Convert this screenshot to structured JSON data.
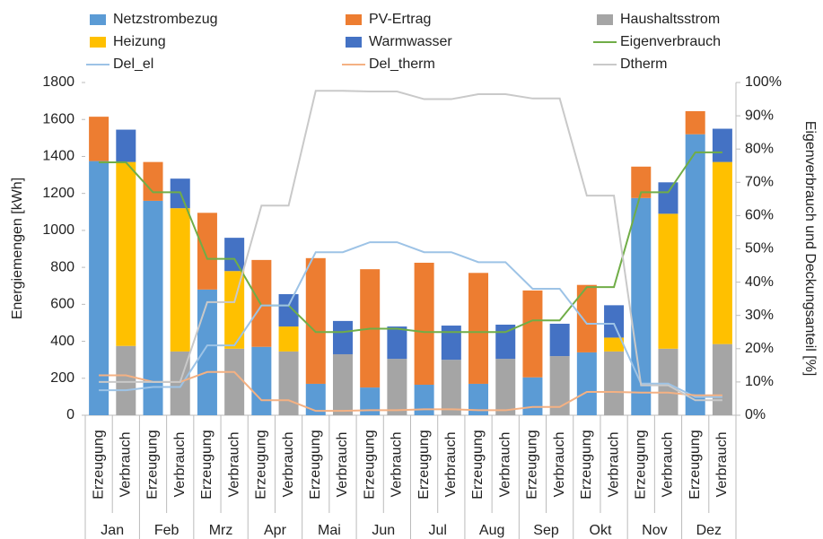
{
  "chart_data": {
    "type": "bar",
    "y_label": "Energiemengen [kWh]",
    "y2_label": "Eigenverbrauch und Deckungsanteil [%]",
    "groups": [
      "Jan",
      "Feb",
      "Mrz",
      "Apr",
      "Mai",
      "Jun",
      "Jul",
      "Aug",
      "Sep",
      "Okt",
      "Nov",
      "Dez"
    ],
    "categories": [
      "Erzeugung",
      "Verbrauch",
      "Erzeugung",
      "Verbrauch",
      "Erzeugung",
      "Verbrauch",
      "Erzeugung",
      "Verbrauch",
      "Erzeugung",
      "Verbrauch",
      "Erzeugung",
      "Verbrauch",
      "Erzeugung",
      "Verbrauch",
      "Erzeugung",
      "Verbrauch",
      "Erzeugung",
      "Verbrauch",
      "Erzeugung",
      "Verbrauch",
      "Erzeugung",
      "Verbrauch",
      "Erzeugung",
      "Verbrauch"
    ],
    "ylim": [
      0,
      1800
    ],
    "yticks": [
      0,
      200,
      400,
      600,
      800,
      1000,
      1200,
      1400,
      1600,
      1800
    ],
    "y2lim": [
      0,
      100
    ],
    "y2ticks": [
      {
        "value": 0,
        "label": "0%"
      },
      {
        "value": 10,
        "label": "10%"
      },
      {
        "value": 20,
        "label": "20%"
      },
      {
        "value": 30,
        "label": "30%"
      },
      {
        "value": 40,
        "label": "40%"
      },
      {
        "value": 50,
        "label": "50%"
      },
      {
        "value": 60,
        "label": "60%"
      },
      {
        "value": 70,
        "label": "70%"
      },
      {
        "value": 80,
        "label": "80%"
      },
      {
        "value": 90,
        "label": "90%"
      },
      {
        "value": 100,
        "label": "100%"
      }
    ],
    "series": [
      {
        "name": "Netzstrombezug",
        "type": "bar",
        "color": "#5b9bd5",
        "values": [
          1375,
          null,
          1160,
          null,
          680,
          null,
          370,
          null,
          170,
          null,
          150,
          null,
          165,
          null,
          170,
          null,
          205,
          null,
          340,
          null,
          1175,
          null,
          1520,
          null
        ]
      },
      {
        "name": "PV-Ertrag",
        "type": "bar",
        "color": "#ed7d31",
        "values": [
          240,
          null,
          210,
          null,
          415,
          null,
          470,
          null,
          680,
          null,
          640,
          null,
          660,
          null,
          600,
          null,
          470,
          null,
          365,
          null,
          170,
          null,
          125,
          null
        ]
      },
      {
        "name": "Haushaltsstrom",
        "type": "bar",
        "color": "#a5a5a5",
        "values": [
          null,
          375,
          null,
          345,
          null,
          360,
          null,
          345,
          null,
          330,
          null,
          305,
          null,
          300,
          null,
          305,
          null,
          320,
          null,
          345,
          null,
          360,
          null,
          385
        ]
      },
      {
        "name": "Heizung",
        "type": "bar",
        "color": "#ffc000",
        "values": [
          null,
          995,
          null,
          775,
          null,
          420,
          null,
          135,
          null,
          0,
          null,
          0,
          null,
          0,
          null,
          0,
          null,
          0,
          null,
          75,
          null,
          730,
          null,
          985
        ]
      },
      {
        "name": "Warmwasser",
        "type": "bar",
        "color": "#4472c4",
        "values": [
          null,
          175,
          null,
          160,
          null,
          180,
          null,
          175,
          null,
          180,
          null,
          175,
          null,
          185,
          null,
          185,
          null,
          175,
          null,
          175,
          null,
          170,
          null,
          180
        ]
      },
      {
        "name": "Eigenverbrauch",
        "type": "line",
        "axis": "y2",
        "color": "#70ad47",
        "values": [
          76,
          76,
          67,
          67,
          47,
          47,
          33,
          33,
          25,
          25,
          26,
          26,
          25,
          25,
          25,
          25,
          28.5,
          28.5,
          38.5,
          38.5,
          67,
          67,
          79,
          79
        ]
      },
      {
        "name": "Del_el",
        "type": "line",
        "axis": "y2",
        "color": "#9dc3e6",
        "values": [
          7.5,
          7.5,
          8.5,
          8.5,
          21,
          21,
          33,
          33,
          49,
          49,
          52,
          52,
          49,
          49,
          46,
          46,
          38,
          38,
          27.5,
          27.5,
          9.5,
          9.5,
          5.5,
          5.5
        ]
      },
      {
        "name": "Del_therm",
        "type": "line",
        "axis": "y2",
        "color": "#f4b183",
        "values": [
          12,
          12,
          10,
          10,
          13,
          13,
          4.5,
          4.5,
          1.3,
          1.3,
          1.5,
          1.5,
          1.8,
          1.8,
          1.5,
          1.5,
          2.5,
          2.5,
          7,
          7,
          6.8,
          6.8,
          6,
          6
        ]
      },
      {
        "name": "Dtherm",
        "type": "line",
        "axis": "y2",
        "color": "#c9c9c9",
        "values": [
          10,
          10,
          10,
          10,
          34,
          34,
          63,
          63,
          97.5,
          97.5,
          97.3,
          97.3,
          95,
          95,
          96.5,
          96.5,
          95.2,
          95.2,
          66,
          66,
          9,
          9,
          4.5,
          4.5
        ]
      }
    ]
  }
}
